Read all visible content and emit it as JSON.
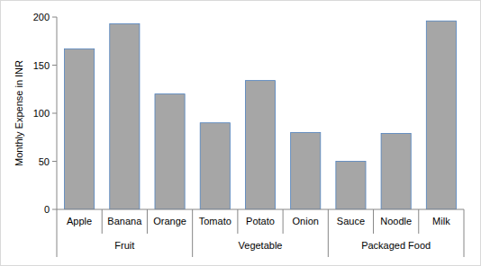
{
  "chart_data": {
    "type": "bar",
    "ylabel": "Monthly Expense in INR",
    "categories": [
      "Apple",
      "Banana",
      "Orange",
      "Tomato",
      "Potato",
      "Onion",
      "Sauce",
      "Noodle",
      "Milk"
    ],
    "category_groups": [
      "Fruit",
      "Fruit",
      "Fruit",
      "Vegetable",
      "Vegetable",
      "Vegetable",
      "Packaged Food",
      "Packaged Food",
      "Packaged Food"
    ],
    "values": [
      167,
      193,
      120,
      90,
      134,
      80,
      50,
      79,
      196
    ],
    "color": "#a6a6a6",
    "ylim": [
      0,
      200
    ],
    "yticks": [
      0,
      50,
      100,
      150,
      200
    ],
    "grid": false
  }
}
